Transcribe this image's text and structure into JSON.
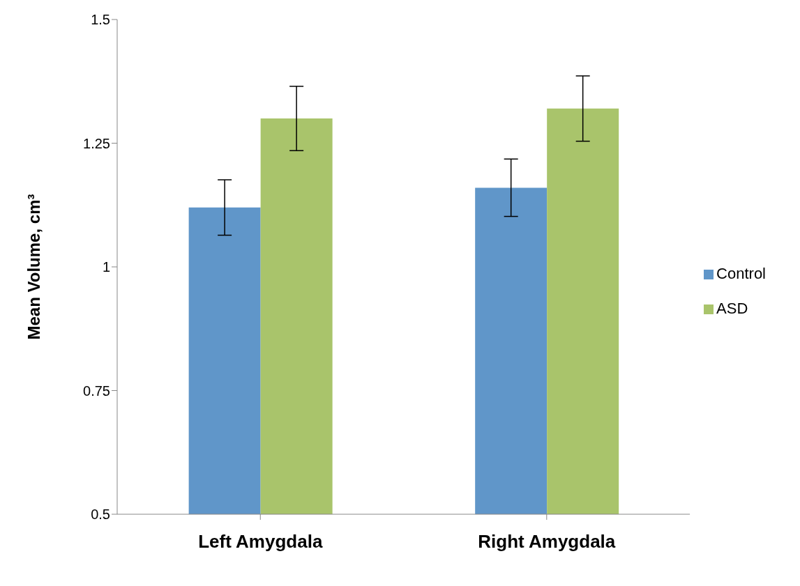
{
  "chart_data": {
    "type": "bar",
    "ylabel": "Mean Volume, cm³",
    "categories": [
      "Left Amygdala",
      "Right Amygdala"
    ],
    "series": [
      {
        "name": "Control",
        "color": "#6096c9",
        "values": [
          1.12,
          1.16
        ],
        "errors": [
          0.056,
          0.058
        ]
      },
      {
        "name": "ASD",
        "color": "#a9c46b",
        "values": [
          1.3,
          1.32
        ],
        "errors": [
          0.065,
          0.066
        ]
      }
    ],
    "ylim": [
      0.5,
      1.5
    ],
    "yticks": [
      0.5,
      0.75,
      1,
      1.25,
      1.5
    ],
    "grid": false,
    "legend": "right"
  }
}
